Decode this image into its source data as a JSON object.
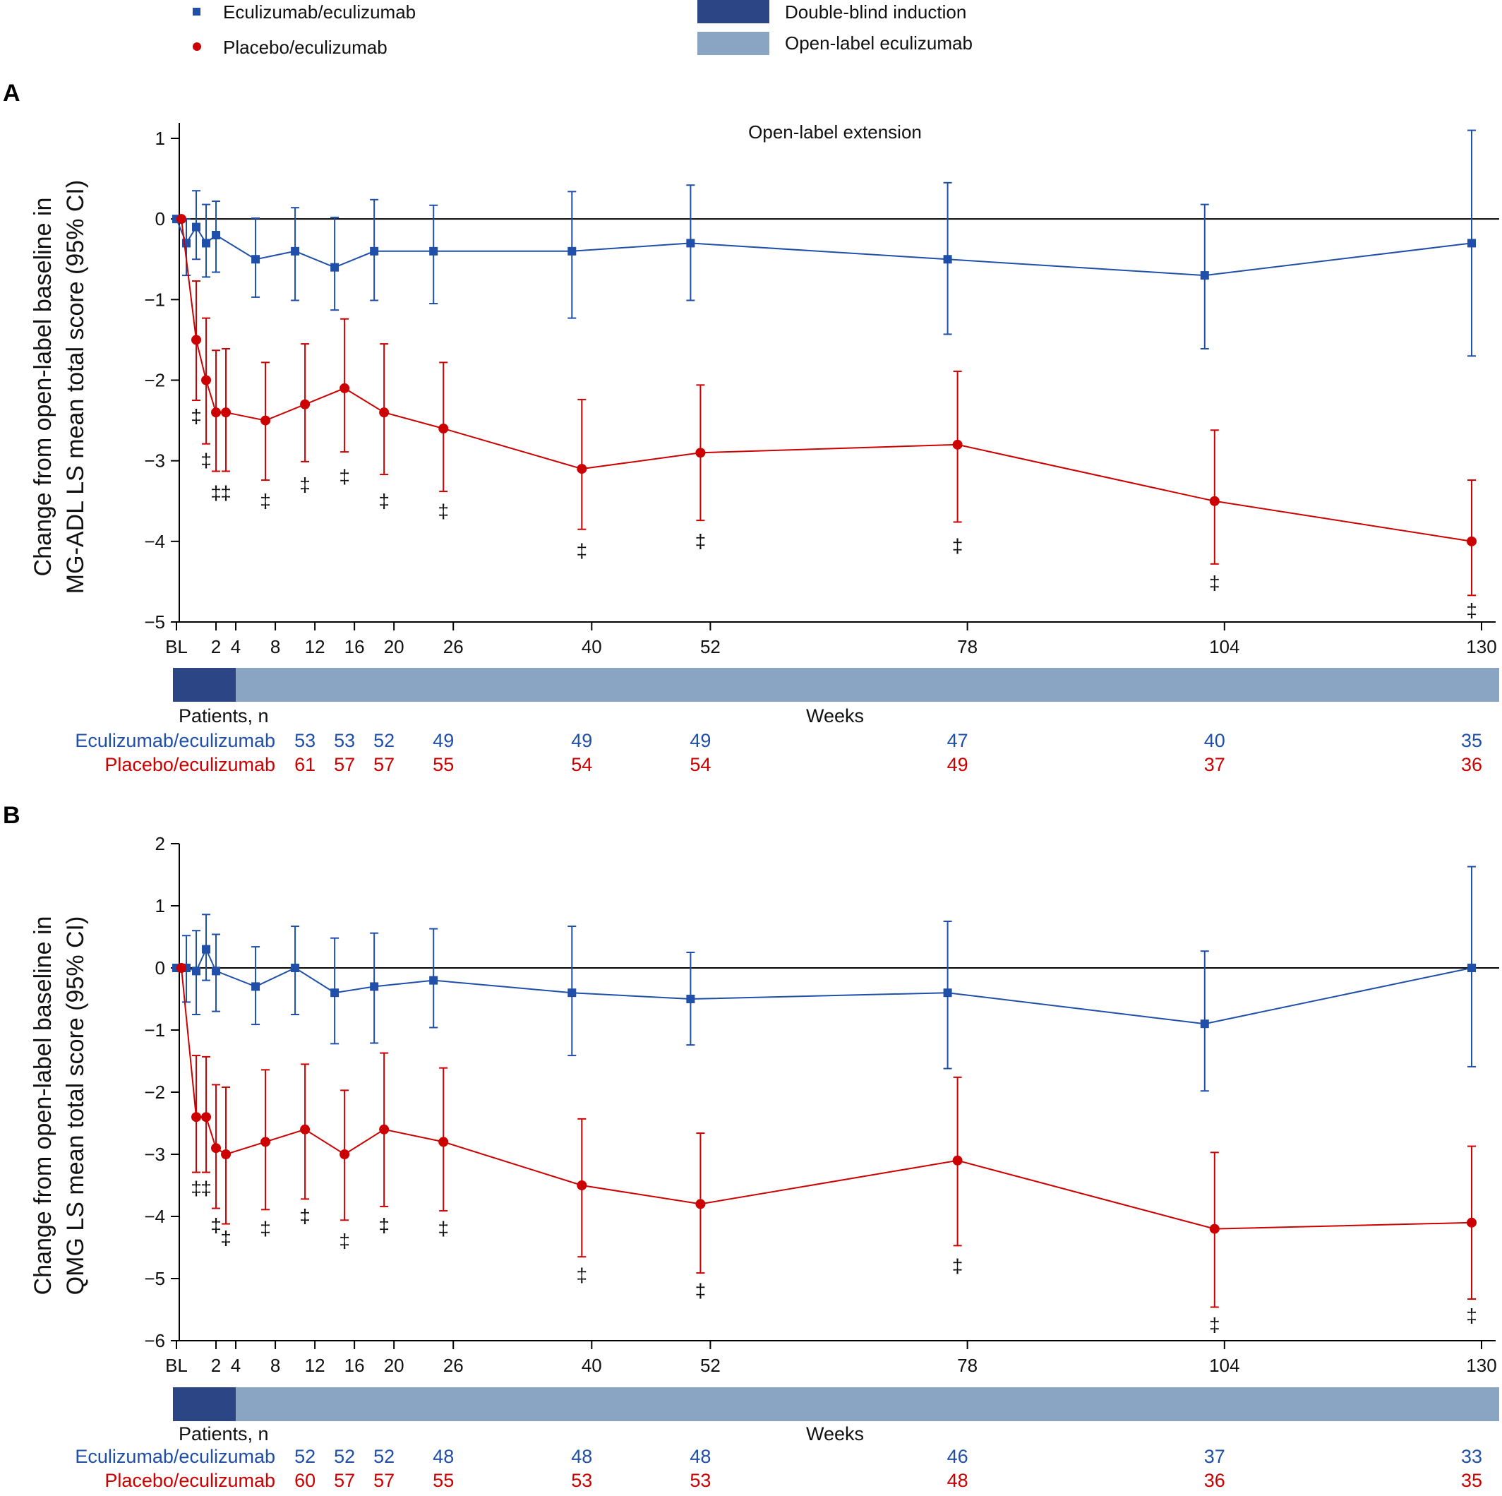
{
  "legend": {
    "series": [
      {
        "name": "Eculizumab/eculizumab",
        "color": "#1f4fa8",
        "marker": "square"
      },
      {
        "name": "Placebo/eculizumab",
        "color": "#cc0000",
        "marker": "circle"
      }
    ],
    "phases": [
      {
        "name": "Double-blind induction",
        "color": "#2c4584"
      },
      {
        "name": "Open-label eculizumab",
        "color": "#8aa4c4"
      }
    ]
  },
  "chart_data": [
    {
      "type": "line",
      "panel_label": "A",
      "title": "",
      "annotation": "Open-label extension",
      "xlabel": "Weeks",
      "ylabel": [
        "Change from open-label baseline in",
        "MG-ADL LS mean total score (95% CI)"
      ],
      "x_ticks": [
        {
          "value": -2,
          "label": "BL"
        },
        {
          "value": 2,
          "label": "2"
        },
        {
          "value": 4,
          "label": "4"
        },
        {
          "value": 8,
          "label": "8"
        },
        {
          "value": 12,
          "label": "12"
        },
        {
          "value": 16,
          "label": "16"
        },
        {
          "value": 20,
          "label": "20"
        },
        {
          "value": 26,
          "label": "26"
        },
        {
          "value": 40,
          "label": "40"
        },
        {
          "value": 52,
          "label": "52"
        },
        {
          "value": 78,
          "label": "78"
        },
        {
          "value": 104,
          "label": "104"
        },
        {
          "value": 130,
          "label": "130"
        }
      ],
      "y_ticks": [
        1,
        0,
        -1,
        -2,
        -3,
        -4,
        -5
      ],
      "ylim": [
        -5,
        1.2
      ],
      "xlim": [
        -2.5,
        133
      ],
      "phase_bar": {
        "double_blind_end": 4
      },
      "significance_symbol": "‡",
      "series": [
        {
          "name": "Eculizumab/eculizumab",
          "points": [
            {
              "x": -2,
              "y": 0.0,
              "lo": 0.0,
              "hi": 0.0
            },
            {
              "x": -1,
              "y": -0.3,
              "lo": -0.7,
              "hi": 0.0
            },
            {
              "x": 0,
              "y": -0.1,
              "lo": -0.5,
              "hi": 0.35
            },
            {
              "x": 1,
              "y": -0.3,
              "lo": -0.72,
              "hi": 0.18
            },
            {
              "x": 2,
              "y": -0.2,
              "lo": -0.66,
              "hi": 0.22
            },
            {
              "x": 6,
              "y": -0.5,
              "lo": -0.97,
              "hi": 0.01
            },
            {
              "x": 10,
              "y": -0.4,
              "lo": -1.01,
              "hi": 0.14
            },
            {
              "x": 14,
              "y": -0.6,
              "lo": -1.13,
              "hi": 0.02
            },
            {
              "x": 18,
              "y": -0.4,
              "lo": -1.01,
              "hi": 0.24
            },
            {
              "x": 24,
              "y": -0.4,
              "lo": -1.05,
              "hi": 0.17
            },
            {
              "x": 38,
              "y": -0.4,
              "lo": -1.23,
              "hi": 0.34
            },
            {
              "x": 50,
              "y": -0.3,
              "lo": -1.01,
              "hi": 0.42
            },
            {
              "x": 76,
              "y": -0.5,
              "lo": -1.43,
              "hi": 0.45
            },
            {
              "x": 102,
              "y": -0.7,
              "lo": -1.61,
              "hi": 0.18
            },
            {
              "x": 129,
              "y": -0.3,
              "lo": -1.7,
              "hi": 1.1
            }
          ]
        },
        {
          "name": "Placebo/eculizumab",
          "points": [
            {
              "x": -1.5,
              "y": 0.0,
              "lo": 0.0,
              "hi": 0.0
            },
            {
              "x": 0,
              "y": -1.5,
              "lo": -2.25,
              "hi": -0.77
            },
            {
              "x": 1,
              "y": -2.0,
              "lo": -2.79,
              "hi": -1.23
            },
            {
              "x": 2,
              "y": -2.4,
              "lo": -3.13,
              "hi": -1.63
            },
            {
              "x": 3,
              "y": -2.4,
              "lo": -3.13,
              "hi": -1.61
            },
            {
              "x": 7,
              "y": -2.5,
              "lo": -3.24,
              "hi": -1.78
            },
            {
              "x": 11,
              "y": -2.3,
              "lo": -3.01,
              "hi": -1.55
            },
            {
              "x": 15,
              "y": -2.1,
              "lo": -2.89,
              "hi": -1.24
            },
            {
              "x": 19,
              "y": -2.4,
              "lo": -3.17,
              "hi": -1.55
            },
            {
              "x": 25,
              "y": -2.6,
              "lo": -3.38,
              "hi": -1.78
            },
            {
              "x": 39,
              "y": -3.1,
              "lo": -3.85,
              "hi": -2.24
            },
            {
              "x": 51,
              "y": -2.9,
              "lo": -3.74,
              "hi": -2.06
            },
            {
              "x": 77,
              "y": -2.8,
              "lo": -3.76,
              "hi": -1.89
            },
            {
              "x": 103,
              "y": -3.5,
              "lo": -4.28,
              "hi": -2.62
            },
            {
              "x": 129,
              "y": -4.0,
              "lo": -4.67,
              "hi": -3.24
            }
          ]
        }
      ],
      "significance_marks": [
        {
          "x": 0,
          "y": -2.45
        },
        {
          "x": 1,
          "y": -3.0
        },
        {
          "x": 2,
          "y": -3.4
        },
        {
          "x": 3,
          "y": -3.4
        },
        {
          "x": 7,
          "y": -3.5
        },
        {
          "x": 11,
          "y": -3.3
        },
        {
          "x": 15,
          "y": -3.2
        },
        {
          "x": 19,
          "y": -3.5
        },
        {
          "x": 25,
          "y": -3.63
        },
        {
          "x": 39,
          "y": -4.12
        },
        {
          "x": 51,
          "y": -4.0
        },
        {
          "x": 77,
          "y": -4.06
        },
        {
          "x": 103,
          "y": -4.52
        },
        {
          "x": 129,
          "y": -4.86
        }
      ],
      "patients": {
        "label": "Patients, n",
        "columns_x": [
          11,
          15,
          19,
          25,
          39,
          51,
          77,
          103,
          129
        ],
        "rows": [
          {
            "name": "Eculizumab/eculizumab",
            "values": [
              "53",
              "53",
              "52",
              "49",
              "49",
              "49",
              "47",
              "40",
              "35"
            ]
          },
          {
            "name": "Placebo/eculizumab",
            "values": [
              "61",
              "57",
              "57",
              "55",
              "54",
              "54",
              "49",
              "37",
              "36"
            ]
          }
        ]
      }
    },
    {
      "type": "line",
      "panel_label": "B",
      "title": "",
      "annotation": "",
      "xlabel": "Weeks",
      "ylabel": [
        "Change from open-label baseline in",
        "QMG LS mean total score (95% CI)"
      ],
      "x_ticks": [
        {
          "value": -2,
          "label": "BL"
        },
        {
          "value": 2,
          "label": "2"
        },
        {
          "value": 4,
          "label": "4"
        },
        {
          "value": 8,
          "label": "8"
        },
        {
          "value": 12,
          "label": "12"
        },
        {
          "value": 16,
          "label": "16"
        },
        {
          "value": 20,
          "label": "20"
        },
        {
          "value": 26,
          "label": "26"
        },
        {
          "value": 40,
          "label": "40"
        },
        {
          "value": 52,
          "label": "52"
        },
        {
          "value": 78,
          "label": "78"
        },
        {
          "value": 104,
          "label": "104"
        },
        {
          "value": 130,
          "label": "130"
        }
      ],
      "y_ticks": [
        2,
        1,
        0,
        -1,
        -2,
        -3,
        -4,
        -5,
        -6
      ],
      "ylim": [
        -6,
        2
      ],
      "xlim": [
        -2.5,
        133
      ],
      "phase_bar": {
        "double_blind_end": 4
      },
      "significance_symbol": "‡",
      "series": [
        {
          "name": "Eculizumab/eculizumab",
          "points": [
            {
              "x": -2,
              "y": 0.0,
              "lo": 0.0,
              "hi": 0.0
            },
            {
              "x": -1,
              "y": 0.0,
              "lo": -0.55,
              "hi": 0.52
            },
            {
              "x": 0,
              "y": -0.05,
              "lo": -0.75,
              "hi": 0.6
            },
            {
              "x": 1,
              "y": 0.3,
              "lo": -0.2,
              "hi": 0.86
            },
            {
              "x": 2,
              "y": -0.05,
              "lo": -0.7,
              "hi": 0.54
            },
            {
              "x": 6,
              "y": -0.3,
              "lo": -0.91,
              "hi": 0.34
            },
            {
              "x": 10,
              "y": 0.0,
              "lo": -0.75,
              "hi": 0.67
            },
            {
              "x": 14,
              "y": -0.4,
              "lo": -1.22,
              "hi": 0.48
            },
            {
              "x": 18,
              "y": -0.3,
              "lo": -1.21,
              "hi": 0.56
            },
            {
              "x": 24,
              "y": -0.2,
              "lo": -0.96,
              "hi": 0.63
            },
            {
              "x": 38,
              "y": -0.4,
              "lo": -1.41,
              "hi": 0.67
            },
            {
              "x": 50,
              "y": -0.5,
              "lo": -1.24,
              "hi": 0.25
            },
            {
              "x": 76,
              "y": -0.4,
              "lo": -1.62,
              "hi": 0.75
            },
            {
              "x": 102,
              "y": -0.9,
              "lo": -1.98,
              "hi": 0.27
            },
            {
              "x": 129,
              "y": 0.0,
              "lo": -1.59,
              "hi": 1.63
            }
          ]
        },
        {
          "name": "Placebo/eculizumab",
          "points": [
            {
              "x": -1.5,
              "y": 0.0,
              "lo": 0.0,
              "hi": 0.0
            },
            {
              "x": 0,
              "y": -2.4,
              "lo": -3.29,
              "hi": -1.41
            },
            {
              "x": 1,
              "y": -2.4,
              "lo": -3.29,
              "hi": -1.43
            },
            {
              "x": 2,
              "y": -2.9,
              "lo": -3.87,
              "hi": -1.88
            },
            {
              "x": 3,
              "y": -3.0,
              "lo": -4.12,
              "hi": -1.92
            },
            {
              "x": 7,
              "y": -2.8,
              "lo": -3.89,
              "hi": -1.64
            },
            {
              "x": 11,
              "y": -2.6,
              "lo": -3.72,
              "hi": -1.55
            },
            {
              "x": 15,
              "y": -3.0,
              "lo": -4.06,
              "hi": -1.97
            },
            {
              "x": 19,
              "y": -2.6,
              "lo": -3.84,
              "hi": -1.37
            },
            {
              "x": 25,
              "y": -2.8,
              "lo": -3.91,
              "hi": -1.61
            },
            {
              "x": 39,
              "y": -3.5,
              "lo": -4.65,
              "hi": -2.43
            },
            {
              "x": 51,
              "y": -3.8,
              "lo": -4.91,
              "hi": -2.66
            },
            {
              "x": 77,
              "y": -3.1,
              "lo": -4.47,
              "hi": -1.76
            },
            {
              "x": 103,
              "y": -4.2,
              "lo": -5.46,
              "hi": -2.97
            },
            {
              "x": 129,
              "y": -4.1,
              "lo": -5.33,
              "hi": -2.87
            }
          ]
        }
      ],
      "significance_marks": [
        {
          "x": 0,
          "y": -3.55
        },
        {
          "x": 1,
          "y": -3.55
        },
        {
          "x": 2,
          "y": -4.15
        },
        {
          "x": 3,
          "y": -4.35
        },
        {
          "x": 7,
          "y": -4.2
        },
        {
          "x": 11,
          "y": -4.0
        },
        {
          "x": 15,
          "y": -4.4
        },
        {
          "x": 19,
          "y": -4.15
        },
        {
          "x": 25,
          "y": -4.2
        },
        {
          "x": 39,
          "y": -4.95
        },
        {
          "x": 51,
          "y": -5.2
        },
        {
          "x": 77,
          "y": -4.8
        },
        {
          "x": 103,
          "y": -5.75
        },
        {
          "x": 129,
          "y": -5.6
        }
      ],
      "patients": {
        "label": "Patients, n",
        "columns_x": [
          11,
          15,
          19,
          25,
          39,
          51,
          77,
          103,
          129
        ],
        "rows": [
          {
            "name": "Eculizumab/eculizumab",
            "values": [
              "52",
              "52",
              "52",
              "48",
              "48",
              "48",
              "46",
              "37",
              "33"
            ]
          },
          {
            "name": "Placebo/eculizumab",
            "values": [
              "60",
              "57",
              "57",
              "55",
              "53",
              "53",
              "48",
              "36",
              "35"
            ]
          }
        ]
      }
    }
  ]
}
